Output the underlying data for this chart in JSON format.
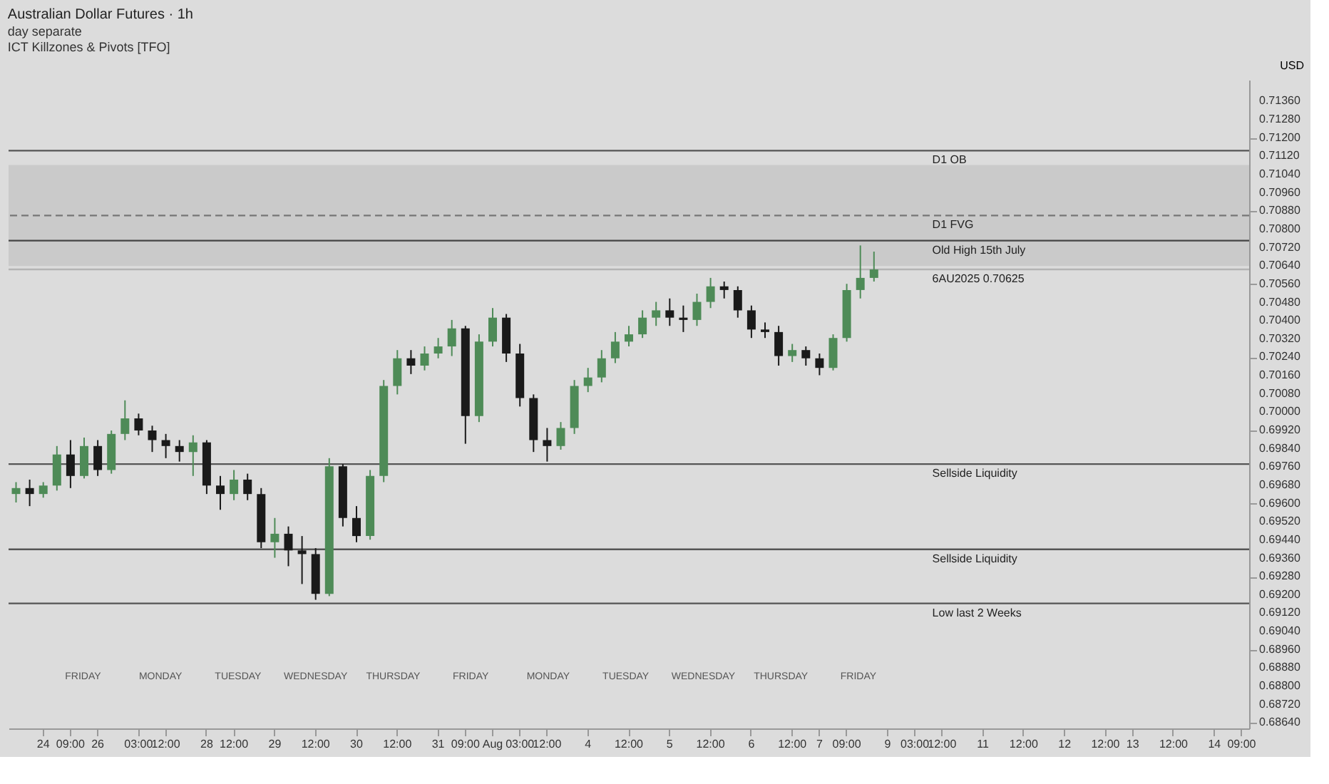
{
  "chart_data": {
    "type": "candlestick",
    "title": "Australian Dollar Futures · 1h",
    "subtitle": [
      "day separate",
      "ICT Killzones & Pivots [TFO]"
    ],
    "ylabel": "USD",
    "categories": [
      null,
      null,
      "24",
      null,
      "09:00",
      null,
      "26",
      null,
      null,
      "03:00",
      null,
      "12:00",
      null,
      null,
      "28",
      null,
      "12:00",
      null,
      null,
      "29",
      null,
      null,
      "12:00",
      null,
      null,
      "30",
      null,
      null,
      "12:00",
      null,
      null,
      "31",
      null,
      "09:00",
      null,
      "Aug",
      null,
      "03:00",
      null,
      "12:00",
      null,
      null,
      "4",
      null,
      null,
      "12:00",
      null,
      null,
      "5",
      null,
      null,
      "12:00",
      null,
      null,
      "6",
      null,
      null,
      "12:00",
      null,
      "7",
      null,
      "09:00",
      null,
      null,
      "9",
      null,
      "03:00",
      null,
      "12:00",
      null,
      null,
      "11",
      null,
      null,
      "12:00",
      null,
      null,
      "12",
      null,
      null,
      "12:00",
      null,
      "13",
      null,
      null,
      "12:00",
      null,
      null,
      "14",
      null,
      "09:00"
    ],
    "ohlc": [
      [
        0.69642,
        0.69694,
        0.69605,
        0.69668
      ],
      [
        0.69668,
        0.69705,
        0.69589,
        0.69642
      ],
      [
        0.69642,
        0.69694,
        0.69626,
        0.69679
      ],
      [
        0.69679,
        0.69852,
        0.69657,
        0.69815
      ],
      [
        0.69815,
        0.69878,
        0.69668,
        0.69721
      ],
      [
        0.69721,
        0.69889,
        0.6971,
        0.69852
      ],
      [
        0.69852,
        0.69878,
        0.69721,
        0.69747
      ],
      [
        0.69747,
        0.6992,
        0.69731,
        0.69905
      ],
      [
        0.69905,
        0.70052,
        0.69878,
        0.69973
      ],
      [
        0.69973,
        0.69994,
        0.69899,
        0.6992
      ],
      [
        0.6992,
        0.69941,
        0.69826,
        0.69878
      ],
      [
        0.69878,
        0.69905,
        0.69799,
        0.69852
      ],
      [
        0.69852,
        0.69878,
        0.69784,
        0.69826
      ],
      [
        0.69826,
        0.69899,
        0.69721,
        0.69868
      ],
      [
        0.69868,
        0.69878,
        0.69642,
        0.69679
      ],
      [
        0.69679,
        0.69721,
        0.69573,
        0.69642
      ],
      [
        0.69642,
        0.69747,
        0.69615,
        0.69705
      ],
      [
        0.69705,
        0.69731,
        0.69615,
        0.69642
      ],
      [
        0.69642,
        0.69668,
        0.69405,
        0.69431
      ],
      [
        0.69431,
        0.69537,
        0.69363,
        0.69468
      ],
      [
        0.69468,
        0.695,
        0.69326,
        0.69395
      ],
      [
        0.69395,
        0.69458,
        0.69248,
        0.69379
      ],
      [
        0.69379,
        0.69405,
        0.69179,
        0.69205
      ],
      [
        0.69205,
        0.69799,
        0.69195,
        0.69763
      ],
      [
        0.69763,
        0.69773,
        0.695,
        0.69537
      ],
      [
        0.69537,
        0.69589,
        0.69431,
        0.69458
      ],
      [
        0.69458,
        0.69747,
        0.69442,
        0.69721
      ],
      [
        0.69721,
        0.70141,
        0.69694,
        0.70115
      ],
      [
        0.70115,
        0.70272,
        0.70078,
        0.70236
      ],
      [
        0.70236,
        0.70272,
        0.70167,
        0.70204
      ],
      [
        0.70204,
        0.70288,
        0.70183,
        0.70257
      ],
      [
        0.70257,
        0.70325,
        0.70236,
        0.70288
      ],
      [
        0.70288,
        0.70404,
        0.70246,
        0.70367
      ],
      [
        0.70367,
        0.70378,
        0.69862,
        0.69983
      ],
      [
        0.69983,
        0.70341,
        0.69957,
        0.70309
      ],
      [
        0.70309,
        0.70456,
        0.70288,
        0.70414
      ],
      [
        0.70414,
        0.7043,
        0.7022,
        0.70257
      ],
      [
        0.70257,
        0.70299,
        0.70025,
        0.70062
      ],
      [
        0.70062,
        0.70078,
        0.69826,
        0.69878
      ],
      [
        0.69878,
        0.69931,
        0.69784,
        0.69852
      ],
      [
        0.69852,
        0.69957,
        0.69836,
        0.69931
      ],
      [
        0.69931,
        0.70141,
        0.69905,
        0.70115
      ],
      [
        0.70115,
        0.70194,
        0.70088,
        0.70152
      ],
      [
        0.70152,
        0.70272,
        0.70131,
        0.70236
      ],
      [
        0.70236,
        0.70351,
        0.70215,
        0.70309
      ],
      [
        0.70309,
        0.70378,
        0.70288,
        0.70341
      ],
      [
        0.70341,
        0.70446,
        0.70325,
        0.70414
      ],
      [
        0.70414,
        0.70483,
        0.70378,
        0.70446
      ],
      [
        0.70446,
        0.70498,
        0.70378,
        0.70414
      ],
      [
        0.70414,
        0.70467,
        0.70351,
        0.70404
      ],
      [
        0.70404,
        0.70519,
        0.70378,
        0.70483
      ],
      [
        0.70483,
        0.70588,
        0.70456,
        0.70551
      ],
      [
        0.70551,
        0.70572,
        0.70498,
        0.70535
      ],
      [
        0.70535,
        0.70551,
        0.70414,
        0.70446
      ],
      [
        0.70446,
        0.70467,
        0.70325,
        0.70362
      ],
      [
        0.70362,
        0.70393,
        0.70325,
        0.70351
      ],
      [
        0.70351,
        0.70378,
        0.70204,
        0.70246
      ],
      [
        0.70246,
        0.70299,
        0.7022,
        0.70272
      ],
      [
        0.70272,
        0.70288,
        0.70204,
        0.70236
      ],
      [
        0.70236,
        0.70257,
        0.70162,
        0.70194
      ],
      [
        0.70194,
        0.70341,
        0.70183,
        0.70325
      ],
      [
        0.70325,
        0.70562,
        0.70309,
        0.70535
      ],
      [
        0.70535,
        0.7073,
        0.70498,
        0.70588
      ],
      [
        0.70588,
        0.70703,
        0.70572,
        0.70625
      ],
      null,
      null,
      null,
      null,
      null,
      null,
      null,
      null,
      null,
      null,
      null,
      null,
      null,
      null,
      null,
      null,
      null,
      null,
      null,
      null,
      null,
      null,
      null,
      null,
      null,
      null,
      null
    ],
    "colors": [
      "#4e8b57",
      "#1a1a1a",
      "#4e8b57",
      "#4e8b57",
      "#1a1a1a",
      "#4e8b57",
      "#1a1a1a",
      "#4e8b57",
      "#4e8b57",
      "#1a1a1a",
      "#1a1a1a",
      "#1a1a1a",
      "#1a1a1a",
      "#4e8b57",
      "#1a1a1a",
      "#1a1a1a",
      "#4e8b57",
      "#1a1a1a",
      "#1a1a1a",
      "#4e8b57",
      "#1a1a1a",
      "#1a1a1a",
      "#1a1a1a",
      "#4e8b57",
      "#1a1a1a",
      "#1a1a1a",
      "#4e8b57",
      "#4e8b57",
      "#4e8b57",
      "#1a1a1a",
      "#4e8b57",
      "#4e8b57",
      "#4e8b57",
      "#1a1a1a",
      "#4e8b57",
      "#4e8b57",
      "#1a1a1a",
      "#1a1a1a",
      "#1a1a1a",
      "#1a1a1a",
      "#4e8b57",
      "#4e8b57",
      "#4e8b57",
      "#4e8b57",
      "#4e8b57",
      "#4e8b57",
      "#4e8b57",
      "#4e8b57",
      "#1a1a1a",
      "#1a1a1a",
      "#4e8b57",
      "#4e8b57",
      "#1a1a1a",
      "#1a1a1a",
      "#1a1a1a",
      "#1a1a1a",
      "#1a1a1a",
      "#4e8b57",
      "#1a1a1a",
      "#1a1a1a",
      "#4e8b57",
      "#4e8b57",
      "#4e8b57",
      "#4e8b57",
      null,
      null,
      null,
      null,
      null,
      null,
      null,
      null,
      null,
      null,
      null,
      null,
      null,
      null,
      null,
      null,
      null,
      null,
      null,
      null,
      null,
      null,
      null,
      null,
      null,
      null,
      null
    ],
    "bands": [
      {
        "axis": "y",
        "from": 0.7064,
        "to": 0.71082,
        "color": "#c6c6c6"
      }
    ],
    "ref_lines": [
      {
        "axis": "y",
        "value": 0.71145,
        "label": "D1 OB",
        "color": "#555555",
        "line_style": "solid"
      },
      {
        "axis": "y",
        "value": 0.70861,
        "label": "D1 FVG",
        "color": "#777777",
        "line_style": "dashed"
      },
      {
        "axis": "y",
        "value": 0.70751,
        "label": "Old High 15th July",
        "color": "#444444",
        "line_style": "solid"
      },
      {
        "axis": "y",
        "value": 0.70625,
        "label": "6AU2025 0.70625",
        "color": "#b4b4b4",
        "line_style": "solid"
      },
      {
        "axis": "y",
        "value": 0.69773,
        "label": "Sellside Liquidity",
        "color": "#555555",
        "line_style": "solid"
      },
      {
        "axis": "y",
        "value": 0.694,
        "label": "Sellside Liquidity",
        "color": "#555555",
        "line_style": "solid"
      },
      {
        "axis": "y",
        "value": 0.69163,
        "label": "Low last 2 Weeks",
        "color": "#555555",
        "line_style": "solid"
      }
    ],
    "annotations": [
      "FRIDAY",
      "MONDAY",
      "TUESDAY",
      "WEDNESDAY",
      "THURSDAY",
      "FRIDAY",
      "MONDAY",
      "TUESDAY",
      "WEDNESDAY",
      "THURSDAY",
      "FRIDAY"
    ],
    "ylim": [
      0.68616,
      0.71455
    ],
    "yticks": [
      {
        "value": 0.7136,
        "label": "0.71360"
      },
      {
        "value": 0.7128,
        "label": "0.71280"
      },
      {
        "value": 0.712,
        "label": "0.71200"
      },
      {
        "value": 0.7112,
        "label": "0.71120"
      },
      {
        "value": 0.7104,
        "label": "0.71040"
      },
      {
        "value": 0.7096,
        "label": "0.70960"
      },
      {
        "value": 0.7088,
        "label": "0.70880"
      },
      {
        "value": 0.708,
        "label": "0.70800"
      },
      {
        "value": 0.7072,
        "label": "0.70720"
      },
      {
        "value": 0.7064,
        "label": "0.70640"
      },
      {
        "value": 0.7056,
        "label": "0.70560"
      },
      {
        "value": 0.7048,
        "label": "0.70480"
      },
      {
        "value": 0.704,
        "label": "0.70400"
      },
      {
        "value": 0.7032,
        "label": "0.70320"
      },
      {
        "value": 0.7024,
        "label": "0.70240"
      },
      {
        "value": 0.7016,
        "label": "0.70160"
      },
      {
        "value": 0.7008,
        "label": "0.70080"
      },
      {
        "value": 0.7,
        "label": "0.70000"
      },
      {
        "value": 0.6992,
        "label": "0.69920"
      },
      {
        "value": 0.6984,
        "label": "0.69840"
      },
      {
        "value": 0.6976,
        "label": "0.69760"
      },
      {
        "value": 0.6968,
        "label": "0.69680"
      },
      {
        "value": 0.696,
        "label": "0.69600"
      },
      {
        "value": 0.6952,
        "label": "0.69520"
      },
      {
        "value": 0.6944,
        "label": "0.69440"
      },
      {
        "value": 0.6936,
        "label": "0.69360"
      },
      {
        "value": 0.6928,
        "label": "0.69280"
      },
      {
        "value": 0.692,
        "label": "0.69200"
      },
      {
        "value": 0.6912,
        "label": "0.69120"
      },
      {
        "value": 0.6904,
        "label": "0.69040"
      },
      {
        "value": 0.6896,
        "label": "0.68960"
      },
      {
        "value": 0.6888,
        "label": "0.68880"
      },
      {
        "value": 0.688,
        "label": "0.68800"
      },
      {
        "value": 0.6872,
        "label": "0.68720"
      },
      {
        "value": 0.6864,
        "label": "0.68640"
      }
    ],
    "tick_labels": true
  }
}
